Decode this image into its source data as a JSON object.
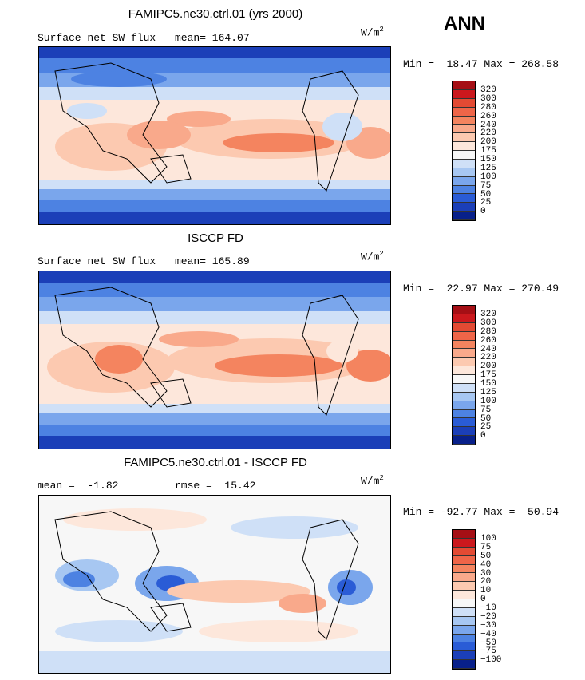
{
  "season": "ANN",
  "panels": [
    {
      "title": "FAMIPC5.ne30.ctrl.01 (yrs 2000)",
      "left_text": "Surface net SW flux",
      "right_text": "mean= 164.07",
      "units_base": "W/m",
      "units_exp": "2",
      "minmax": "Min =  18.47 Max = 268.58",
      "colorbar_levels": [
        "320",
        "300",
        "280",
        "260",
        "240",
        "220",
        "200",
        "175",
        "150",
        "125",
        "100",
        "75",
        "50",
        "25",
        "0"
      ],
      "colorbar_colors": [
        "#a50f15",
        "#cb181d",
        "#e34a33",
        "#ef6548",
        "#f4845f",
        "#f9a98b",
        "#fcc9b0",
        "#fde7db",
        "#f7f7f7",
        "#cfe0f7",
        "#a7c7f2",
        "#7aa6ec",
        "#4d82e2",
        "#2a5cd6",
        "#1b3fb8",
        "#08208a"
      ]
    },
    {
      "title": "ISCCP FD",
      "left_text": "Surface net SW flux",
      "right_text": "mean= 165.89",
      "units_base": "W/m",
      "units_exp": "2",
      "minmax": "Min =  22.97 Max = 270.49",
      "colorbar_levels": [
        "320",
        "300",
        "280",
        "260",
        "240",
        "220",
        "200",
        "175",
        "150",
        "125",
        "100",
        "75",
        "50",
        "25",
        "0"
      ],
      "colorbar_colors": [
        "#a50f15",
        "#cb181d",
        "#e34a33",
        "#ef6548",
        "#f4845f",
        "#f9a98b",
        "#fcc9b0",
        "#fde7db",
        "#f7f7f7",
        "#cfe0f7",
        "#a7c7f2",
        "#7aa6ec",
        "#4d82e2",
        "#2a5cd6",
        "#1b3fb8",
        "#08208a"
      ]
    },
    {
      "title": "FAMIPC5.ne30.ctrl.01 - ISCCP FD",
      "left_text": "mean =  -1.82",
      "right_text": "rmse =  15.42",
      "units_base": "W/m",
      "units_exp": "2",
      "minmax": "Min = -92.77 Max =  50.94",
      "colorbar_levels": [
        "100",
        "75",
        "50",
        "40",
        "30",
        "20",
        "10",
        "0",
        "−10",
        "−20",
        "−30",
        "−40",
        "−50",
        "−75",
        "−100"
      ],
      "colorbar_colors": [
        "#a50f15",
        "#cb181d",
        "#e34a33",
        "#ef6548",
        "#f4845f",
        "#f9a98b",
        "#fcc9b0",
        "#fde7db",
        "#f7f7f7",
        "#cfe0f7",
        "#a7c7f2",
        "#7aa6ec",
        "#4d82e2",
        "#2a5cd6",
        "#1b3fb8",
        "#08208a"
      ]
    }
  ]
}
